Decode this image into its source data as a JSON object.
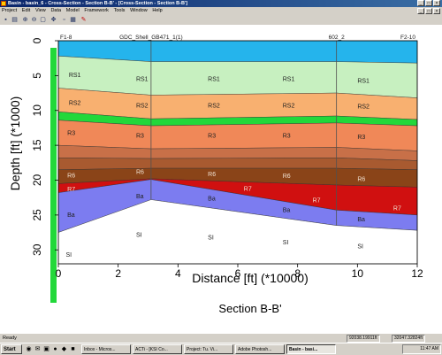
{
  "window": {
    "title": "Basin - basin_6 - Cross-Section - Section B-B' - [Cross-Section - Section B-B']",
    "controls": [
      "_",
      "□",
      "×"
    ]
  },
  "menu": [
    "Project",
    "Edit",
    "View",
    "Data",
    "Model",
    "Framework",
    "Tools",
    "Window",
    "Help"
  ],
  "toolbar": {
    "icons": [
      "save-icon",
      "print-icon",
      "zoom-in-icon",
      "zoom-out-icon",
      "zoom-fit-icon",
      "pan-icon",
      "select-icon",
      "grid-icon",
      "highlight-icon"
    ]
  },
  "section": {
    "title": "Section B-B'",
    "well_labels": [
      "F1-8",
      "GDC_Shell_GB471_1(1)",
      "602_2",
      "F2-10"
    ],
    "well_x": [
      0,
      3.1,
      9.3,
      12
    ],
    "x_label": "Distance [ft] (*10000)",
    "y_label": "Depth [ft] (*1000)",
    "x_ticks": [
      "0",
      "2",
      "4",
      "6",
      "8",
      "10",
      "12"
    ],
    "y_ticks": [
      "0",
      "5",
      "10",
      "15",
      "20",
      "25",
      "30"
    ],
    "x_range": [
      0,
      12
    ],
    "y_range": [
      0,
      32
    ],
    "colors": {
      "seawater": "#25b4ec",
      "RS1": "#c7f0c0",
      "RS2": "#f8b070",
      "green": "#22d83a",
      "R3": "#f08858",
      "L1": "#c87048",
      "L2": "#a85a30",
      "R6": "#8a4418",
      "R7": "#d01010",
      "Ba": "#7c7cf0",
      "SI": "#ffffff",
      "well": "#505050"
    },
    "layers": [
      {
        "name": "seawater",
        "top": [
          0,
          0,
          0,
          0
        ],
        "bottom": [
          2.2,
          3,
          3,
          3.2
        ]
      },
      {
        "name": "RS1",
        "top": [
          2.2,
          3,
          3,
          3.2
        ],
        "bottom": [
          6.8,
          7.8,
          7.5,
          8.2
        ]
      },
      {
        "name": "RS2",
        "top": [
          6.8,
          7.8,
          7.5,
          8.2
        ],
        "bottom": [
          10.2,
          11.2,
          10.8,
          11.3
        ]
      },
      {
        "name": "green",
        "top": [
          10.2,
          11.2,
          10.8,
          11.3
        ],
        "bottom": [
          11.4,
          12.2,
          11.8,
          12.2
        ]
      },
      {
        "name": "R3",
        "top": [
          11.4,
          12.2,
          11.8,
          12.2
        ],
        "bottom": [
          15,
          15.5,
          15.3,
          15.8
        ]
      },
      {
        "name": "L1",
        "top": [
          15,
          15.5,
          15.3,
          15.8
        ],
        "bottom": [
          16.8,
          16.9,
          16.8,
          17.2
        ]
      },
      {
        "name": "L2",
        "top": [
          16.8,
          16.9,
          16.8,
          17.2
        ],
        "bottom": [
          18.5,
          18.3,
          18.3,
          18.5
        ]
      },
      {
        "name": "R6",
        "top": [
          18.5,
          18.3,
          18.3,
          18.5
        ],
        "bottom": [
          20.5,
          19.8,
          20.7,
          21
        ]
      },
      {
        "name": "R7",
        "top": [
          20.5,
          19.8,
          20.7,
          21
        ],
        "bottom": [
          21.8,
          19.9,
          24.3,
          25
        ]
      },
      {
        "name": "Ba",
        "top": [
          21.8,
          19.9,
          24.3,
          25
        ],
        "bottom": [
          27.5,
          22.8,
          26.5,
          27.2
        ]
      },
      {
        "name": "SI",
        "top": [
          27.5,
          22.8,
          26.5,
          27.2
        ],
        "bottom": [
          32,
          32,
          32,
          32
        ]
      }
    ],
    "labels": [
      {
        "text": "RS1",
        "x": 0.35,
        "y": 5.2
      },
      {
        "text": "RS1",
        "x": 2.6,
        "y": 5.8
      },
      {
        "text": "RS1",
        "x": 5,
        "y": 5.8
      },
      {
        "text": "RS1",
        "x": 7.5,
        "y": 5.8
      },
      {
        "text": "RS1",
        "x": 10,
        "y": 6
      },
      {
        "text": "RS2",
        "x": 0.35,
        "y": 9.2
      },
      {
        "text": "RS2",
        "x": 2.6,
        "y": 9.6
      },
      {
        "text": "RS2",
        "x": 5,
        "y": 9.6
      },
      {
        "text": "RS2",
        "x": 7.5,
        "y": 9.6
      },
      {
        "text": "RS2",
        "x": 10,
        "y": 9.7
      },
      {
        "text": "R3",
        "x": 0.3,
        "y": 13.5
      },
      {
        "text": "R3",
        "x": 2.6,
        "y": 13.9
      },
      {
        "text": "R3",
        "x": 5,
        "y": 13.9
      },
      {
        "text": "R3",
        "x": 7.5,
        "y": 13.9
      },
      {
        "text": "R3",
        "x": 10,
        "y": 14.1
      },
      {
        "text": "R6",
        "x": 0.3,
        "y": 19.6
      },
      {
        "text": "R6",
        "x": 2.6,
        "y": 19.1
      },
      {
        "text": "R6",
        "x": 5,
        "y": 19.4
      },
      {
        "text": "R6",
        "x": 7.5,
        "y": 19.7
      },
      {
        "text": "R6",
        "x": 10,
        "y": 20.1
      },
      {
        "text": "R7",
        "x": 0.3,
        "y": 21.6
      },
      {
        "text": "R7",
        "x": 6.2,
        "y": 21.5
      },
      {
        "text": "R7",
        "x": 8.5,
        "y": 23.2
      },
      {
        "text": "R7",
        "x": 11.2,
        "y": 24.3
      },
      {
        "text": "Ba",
        "x": 0.3,
        "y": 25.3
      },
      {
        "text": "Ba",
        "x": 2.6,
        "y": 22.6
      },
      {
        "text": "Ba",
        "x": 5,
        "y": 22.9
      },
      {
        "text": "Ba",
        "x": 7.5,
        "y": 24.6
      },
      {
        "text": "Ba",
        "x": 10,
        "y": 25.9
      },
      {
        "text": "SI",
        "x": 0.25,
        "y": 31
      },
      {
        "text": "SI",
        "x": 2.6,
        "y": 28.1
      },
      {
        "text": "SI",
        "x": 5,
        "y": 28.5
      },
      {
        "text": "SI",
        "x": 7.5,
        "y": 29.2
      },
      {
        "text": "SI",
        "x": 10,
        "y": 29.8
      }
    ]
  },
  "status": {
    "text": "Ready",
    "cells": [
      "92038.19911ft",
      "32047.32824ft"
    ]
  },
  "taskbar": {
    "start": "Start",
    "tasks": [
      {
        "label": "Inbox - Micros...",
        "active": false
      },
      {
        "label": "ACTi - [KSI Co...",
        "active": false
      },
      {
        "label": "Project: Tu. Vi...",
        "active": false
      },
      {
        "label": "Adobe Photosh...",
        "active": false
      },
      {
        "label": "Basin - basi...",
        "active": true
      }
    ],
    "clock": "11:47 AM"
  }
}
